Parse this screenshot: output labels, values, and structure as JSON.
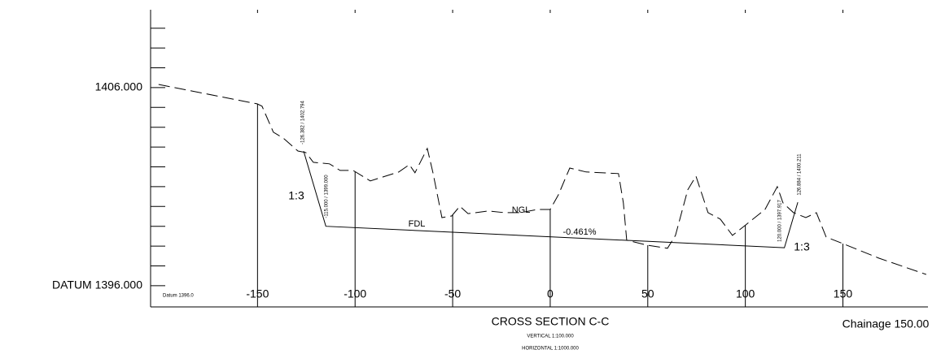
{
  "chart_data": {
    "type": "line",
    "title": "CROSS SECTION C-C",
    "subtitles": [
      "VERTICAL   1:100.000",
      "HORIZONTAL  1:1000.000"
    ],
    "chainage_label": "Chainage 150.00",
    "datum_label": "Datum 1396.0",
    "xlim": [
      -204.8,
      193.6
    ],
    "ylim": [
      1394.93,
      1409.93
    ],
    "xticks": [
      -150,
      -100,
      -50,
      0,
      50,
      100,
      150
    ],
    "yticks": [
      {
        "value": 1406,
        "label": "1406.000"
      },
      {
        "value": 1396,
        "label": "DATUM 1396.000"
      }
    ],
    "y_minor_ticks": [
      1397,
      1398,
      1399,
      1400,
      1401,
      1402,
      1403,
      1404,
      1405,
      1407,
      1408,
      1409
    ],
    "series": [
      {
        "name": "NGL",
        "color": "#000000",
        "dashed": true,
        "x": [
          -200.7,
          -150.2,
          -147.7,
          -141.9,
          -136.9,
          -129.3,
          -125.2,
          -121.4,
          -113.1,
          -107.7,
          -101.0,
          -92.2,
          -77.6,
          -72.2,
          -69.3,
          -63.0,
          -60.1,
          -55.5,
          -50.5,
          -46.3,
          -42.1,
          -31.7,
          -23.4,
          -15.0,
          -6.7,
          0,
          4.2,
          10.0,
          18.4,
          35.0,
          37.5,
          39.2,
          49.6,
          60.1,
          64.2,
          70.5,
          74.7,
          80.9,
          87.2,
          93.4,
          99.7,
          110.1,
          116.4,
          119.3,
          124.7,
          131.0,
          136.4,
          141.4,
          149.8,
          168.5,
          192.7
        ],
        "values": [
          1406.16,
          1405.18,
          1405.06,
          1403.75,
          1403.46,
          1402.8,
          1402.72,
          1402.23,
          1402.15,
          1401.82,
          1401.82,
          1401.29,
          1401.74,
          1402.11,
          1401.7,
          1402.93,
          1401.7,
          1399.44,
          1399.52,
          1400.01,
          1399.64,
          1399.77,
          1399.69,
          1399.69,
          1399.85,
          1399.85,
          1400.59,
          1401.94,
          1401.74,
          1401.66,
          1400.18,
          1398.3,
          1398.05,
          1397.89,
          1398.54,
          1400.84,
          1401.53,
          1399.69,
          1399.36,
          1398.54,
          1399.03,
          1399.85,
          1401.0,
          1400.18,
          1399.69,
          1399.44,
          1399.69,
          1398.46,
          1398.13,
          1397.39,
          1396.57
        ]
      },
      {
        "name": "FDL",
        "color": "#000000",
        "dashed": false,
        "x": [
          -126.382,
          -115.0,
          120.0,
          126.884
        ],
        "values": [
          1402.794,
          1399.0,
          1397.917,
          1400.211
        ]
      }
    ],
    "point_labels": [
      "-126.382 / 1402.794",
      "-115.000 / 1399.000",
      "120.000 / 1397.917",
      "126.884 / 1400.211"
    ],
    "annotations": [
      "1:3",
      "1:3",
      "-0.461%"
    ]
  }
}
